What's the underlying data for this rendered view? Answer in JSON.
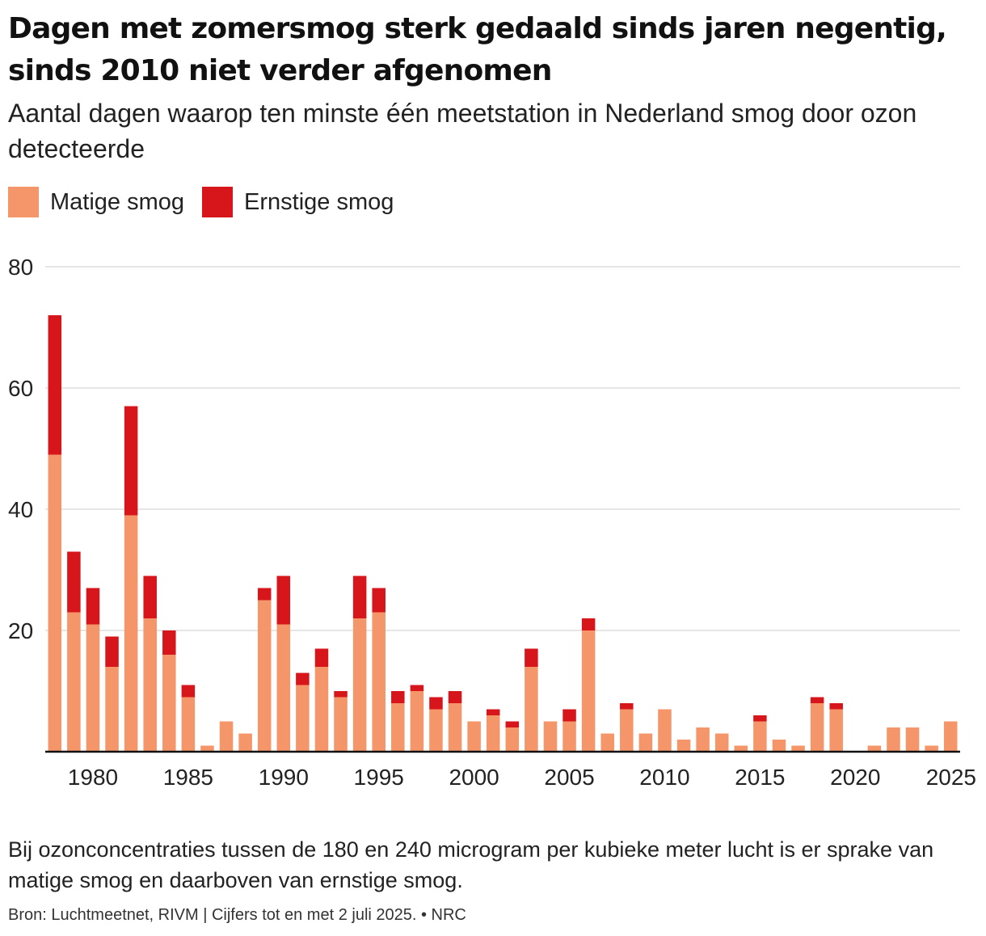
{
  "title": "Dagen met zomersmog sterk gedaald sinds jaren negentig, sinds 2010 niet verder afgenomen",
  "subtitle": "Aantal dagen waarop ten minste één meetstation in Nederland smog door ozon detecteerde",
  "legend": [
    {
      "label": "Matige smog",
      "color": "#f4956a"
    },
    {
      "label": "Ernstige smog",
      "color": "#d7161c"
    }
  ],
  "note": "Bij ozonconcentraties tussen de 180 en 240 microgram per kubieke meter lucht is er sprake van matige smog en daarboven van ernstige smog.",
  "source": "Bron: Luchtmeetnet, RIVM | Cijfers tot en met 2 juli 2025. • NRC",
  "chart_data": {
    "type": "bar",
    "stacked": true,
    "x": [
      1978,
      1979,
      1980,
      1981,
      1982,
      1983,
      1984,
      1985,
      1986,
      1987,
      1988,
      1989,
      1990,
      1991,
      1992,
      1993,
      1994,
      1995,
      1996,
      1997,
      1998,
      1999,
      2000,
      2001,
      2002,
      2003,
      2004,
      2005,
      2006,
      2007,
      2008,
      2009,
      2010,
      2011,
      2012,
      2013,
      2014,
      2015,
      2016,
      2017,
      2018,
      2019,
      2020,
      2021,
      2022,
      2023,
      2024,
      2025
    ],
    "series": [
      {
        "name": "Matige smog",
        "color": "#f4956a",
        "values": [
          49,
          23,
          21,
          14,
          39,
          22,
          16,
          9,
          1,
          5,
          3,
          25,
          21,
          11,
          14,
          9,
          22,
          23,
          8,
          10,
          7,
          8,
          5,
          6,
          4,
          14,
          5,
          5,
          20,
          3,
          7,
          3,
          7,
          2,
          4,
          3,
          1,
          5,
          2,
          1,
          8,
          7,
          0,
          1,
          4,
          4,
          1,
          5
        ]
      },
      {
        "name": "Ernstige smog",
        "color": "#d7161c",
        "values": [
          23,
          10,
          6,
          5,
          18,
          7,
          4,
          2,
          0,
          0,
          0,
          2,
          8,
          2,
          3,
          1,
          7,
          4,
          2,
          1,
          2,
          2,
          0,
          1,
          1,
          3,
          0,
          2,
          2,
          0,
          1,
          0,
          0,
          0,
          0,
          0,
          0,
          1,
          0,
          0,
          1,
          1,
          0,
          0,
          0,
          0,
          0,
          0
        ]
      }
    ],
    "x_ticks": [
      "1980",
      "1985",
      "1990",
      "1995",
      "2000",
      "2005",
      "2010",
      "2015",
      "2020",
      "2025"
    ],
    "y_ticks": [
      "20",
      "40",
      "60",
      "80"
    ],
    "ylim": [
      0,
      80
    ],
    "grid": true,
    "legend_position": "top-left"
  }
}
